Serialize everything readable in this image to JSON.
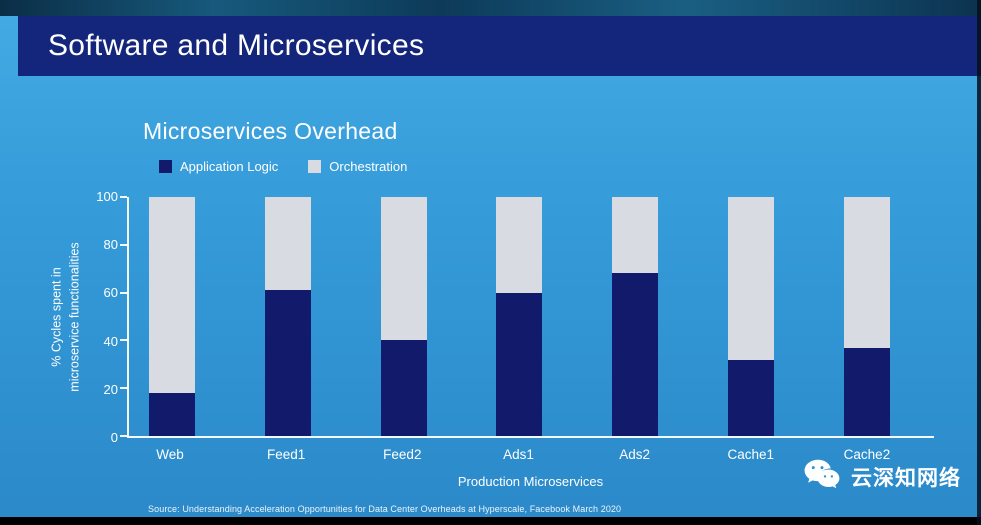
{
  "header": {
    "title": "Software and Microservices"
  },
  "chart": {
    "title": "Microservices Overhead",
    "legend": [
      {
        "label": "Application Logic",
        "color": "#111a6b"
      },
      {
        "label": "Orchestration",
        "color": "#d8dce2"
      }
    ],
    "ylabel_lines": [
      "% Cycles spent in",
      "microservice functionalities"
    ],
    "xlabel": "Production Microservices"
  },
  "chart_data": {
    "type": "bar",
    "stacked": true,
    "title": "Microservices Overhead",
    "xlabel": "Production Microservices",
    "ylabel": "% Cycles spent in microservice functionalities",
    "categories": [
      "Web",
      "Feed1",
      "Feed2",
      "Ads1",
      "Ads2",
      "Cache1",
      "Cache2"
    ],
    "series": [
      {
        "name": "Application Logic",
        "color": "#111a6b",
        "values": [
          18,
          61,
          40,
          60,
          68,
          32,
          37
        ]
      },
      {
        "name": "Orchestration",
        "color": "#d8dce2",
        "values": [
          82,
          39,
          60,
          40,
          32,
          68,
          63
        ]
      }
    ],
    "ylim": [
      0,
      100
    ],
    "yticks": [
      0,
      20,
      40,
      60,
      80,
      100
    ],
    "grid": false,
    "legend_position": "top-left"
  },
  "source": {
    "text": "Source: Understanding Acceleration Opportunities for Data Center Overheads at Hyperscale, Facebook March 2020"
  },
  "watermark": {
    "text": "云深知网络"
  },
  "colors": {
    "header_bar": "#14267c",
    "application_logic": "#111a6b",
    "orchestration": "#d8dce2",
    "background_top": "#44abe4",
    "background_bottom": "#2b89c9"
  }
}
